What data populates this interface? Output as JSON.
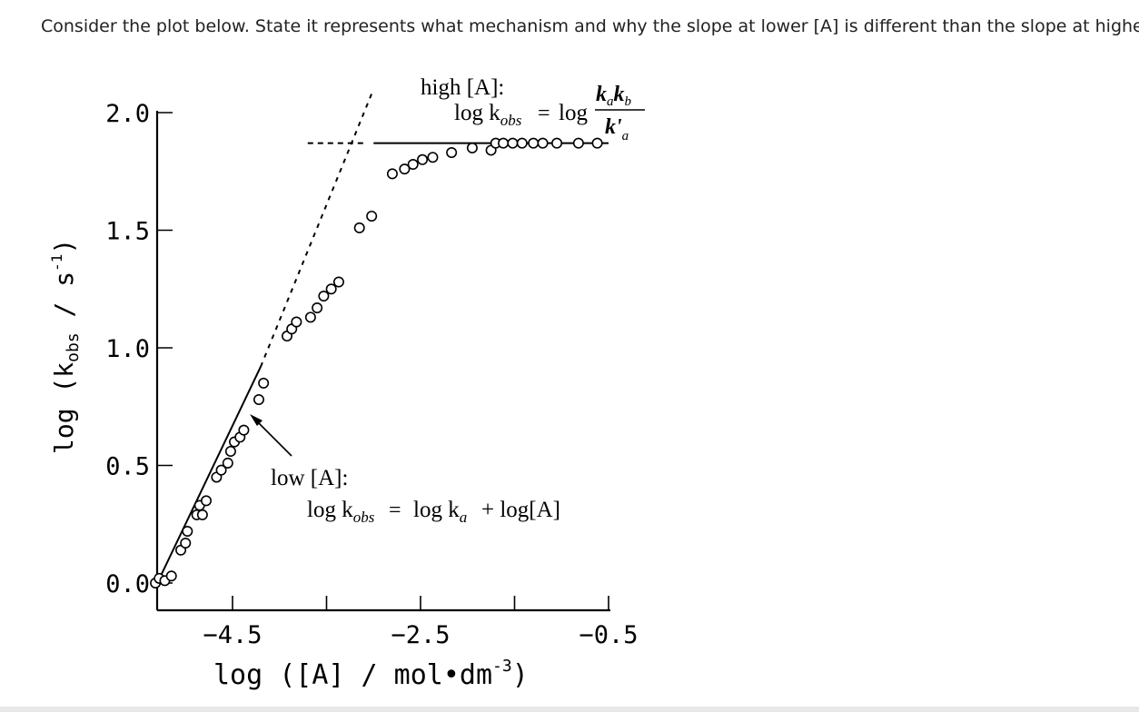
{
  "question": "Consider the plot below. State it represents what mechanism and why the slope at lower [A] is different than the slope at higher [A",
  "chart_data": {
    "type": "scatter",
    "xlabel": "log ([A] / mol•dm",
    "xlabel_sup": "-3",
    "xlabel_close": ")",
    "ylabel": "log (k",
    "ylabel_sub": "obs",
    "ylabel_mid": " / s",
    "ylabel_sup": "-1",
    "ylabel_close": ")",
    "x_ticks": [
      {
        "value": -4.5,
        "label": "−4.5"
      },
      {
        "value": -2.5,
        "label": "−2.5"
      },
      {
        "value": -0.5,
        "label": "−0.5"
      }
    ],
    "x_minor_ticks": [
      -3.5,
      -1.5
    ],
    "y_ticks": [
      {
        "value": 0.0,
        "label": "0.0"
      },
      {
        "value": 0.5,
        "label": "0.5"
      },
      {
        "value": 1.0,
        "label": "1.0"
      },
      {
        "value": 1.5,
        "label": "1.5"
      },
      {
        "value": 2.0,
        "label": "2.0"
      }
    ],
    "xlim": [
      -5.3,
      -0.4
    ],
    "ylim": [
      0.0,
      2.05
    ],
    "high_label": {
      "title": "high [A]:",
      "lhs": "log k",
      "lhs_sub": "obs",
      "eq": "=",
      "rhs": "log",
      "num_a": "k",
      "num_a_sub": "a",
      "num_b": "k",
      "num_b_sub": "b",
      "den": "k'",
      "den_sub": "a"
    },
    "low_label": {
      "title": "low [A]:",
      "lhs": "log k",
      "lhs_sub": "obs",
      "eq": "=",
      "rhs1": "log k",
      "rhs1_sub": "a",
      "rhs2": "+ log[A]"
    },
    "plateau": 1.87,
    "low_line": {
      "x1": -5.3,
      "y1": 0.0,
      "x2": -4.2,
      "y2": 0.92
    },
    "dashed_extrapolation": {
      "x1": -4.2,
      "y1": 0.92,
      "x2": -3.0,
      "y2": 2.1
    },
    "dashed_plateau": {
      "x1": -3.7,
      "x2": -3.1
    },
    "solid_plateau": {
      "x1": -3.0,
      "x2": -0.5
    },
    "points": [
      {
        "x": -5.32,
        "y": 0.0
      },
      {
        "x": -5.28,
        "y": 0.02
      },
      {
        "x": -5.22,
        "y": 0.01
      },
      {
        "x": -5.15,
        "y": 0.03
      },
      {
        "x": -5.05,
        "y": 0.14
      },
      {
        "x": -5.0,
        "y": 0.17
      },
      {
        "x": -4.98,
        "y": 0.22
      },
      {
        "x": -4.88,
        "y": 0.29
      },
      {
        "x": -4.85,
        "y": 0.33
      },
      {
        "x": -4.82,
        "y": 0.29
      },
      {
        "x": -4.78,
        "y": 0.35
      },
      {
        "x": -4.67,
        "y": 0.45
      },
      {
        "x": -4.62,
        "y": 0.48
      },
      {
        "x": -4.55,
        "y": 0.51
      },
      {
        "x": -4.52,
        "y": 0.56
      },
      {
        "x": -4.48,
        "y": 0.6
      },
      {
        "x": -4.42,
        "y": 0.62
      },
      {
        "x": -4.38,
        "y": 0.65
      },
      {
        "x": -4.22,
        "y": 0.78
      },
      {
        "x": -4.17,
        "y": 0.85
      },
      {
        "x": -3.92,
        "y": 1.05
      },
      {
        "x": -3.87,
        "y": 1.08
      },
      {
        "x": -3.82,
        "y": 1.11
      },
      {
        "x": -3.67,
        "y": 1.13
      },
      {
        "x": -3.6,
        "y": 1.17
      },
      {
        "x": -3.53,
        "y": 1.22
      },
      {
        "x": -3.45,
        "y": 1.25
      },
      {
        "x": -3.37,
        "y": 1.28
      },
      {
        "x": -3.15,
        "y": 1.51
      },
      {
        "x": -3.02,
        "y": 1.56
      },
      {
        "x": -2.8,
        "y": 1.74
      },
      {
        "x": -2.67,
        "y": 1.76
      },
      {
        "x": -2.58,
        "y": 1.78
      },
      {
        "x": -2.48,
        "y": 1.8
      },
      {
        "x": -2.37,
        "y": 1.81
      },
      {
        "x": -2.17,
        "y": 1.83
      },
      {
        "x": -1.95,
        "y": 1.85
      },
      {
        "x": -1.75,
        "y": 1.84
      },
      {
        "x": -1.7,
        "y": 1.87
      },
      {
        "x": -1.62,
        "y": 1.87
      },
      {
        "x": -1.52,
        "y": 1.87
      },
      {
        "x": -1.42,
        "y": 1.87
      },
      {
        "x": -1.3,
        "y": 1.87
      },
      {
        "x": -1.2,
        "y": 1.87
      },
      {
        "x": -1.05,
        "y": 1.87
      },
      {
        "x": -0.82,
        "y": 1.87
      },
      {
        "x": -0.62,
        "y": 1.87
      }
    ]
  }
}
